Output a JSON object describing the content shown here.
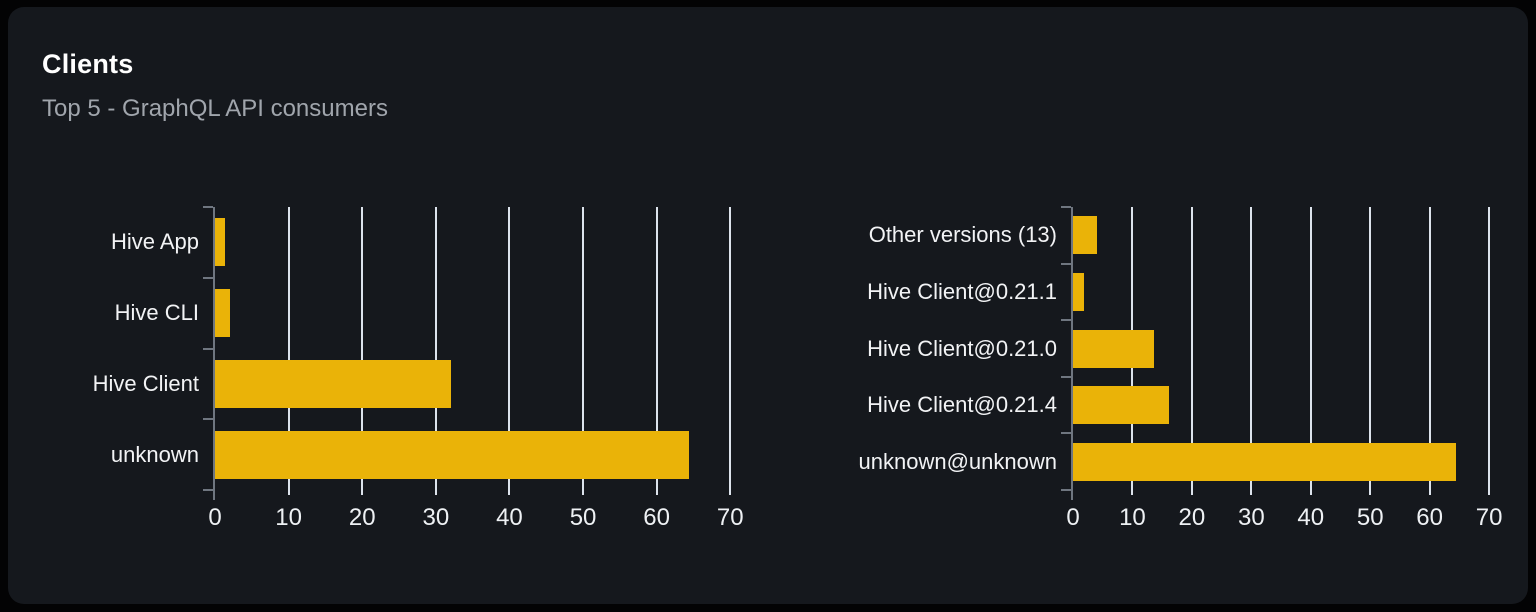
{
  "header": {
    "title": "Clients",
    "subtitle": "Top 5 - GraphQL API consumers"
  },
  "colors": {
    "bar": "#eab308",
    "grid": "#dce3ec",
    "axis": "#6f7680",
    "title": "#ffffff",
    "subtitle": "#a0a5ac",
    "category_label": "#f2f3f5",
    "tick_label": "#eef1f4",
    "card_bg": "#15181d",
    "page_bg": "#030304"
  },
  "chart_data": [
    {
      "type": "bar",
      "orientation": "horizontal",
      "title": "",
      "xlabel": "",
      "ylabel": "",
      "categories": [
        "Hive App",
        "Hive CLI",
        "Hive Client",
        "unknown"
      ],
      "values": [
        1.4,
        2.1,
        32.1,
        64.4
      ],
      "x_ticks": [
        0,
        10,
        20,
        30,
        40,
        50,
        60,
        70
      ],
      "xlim": [
        0,
        72
      ],
      "unit": "percent",
      "grid": true,
      "legend": false
    },
    {
      "type": "bar",
      "orientation": "horizontal",
      "title": "",
      "xlabel": "",
      "ylabel": "",
      "categories": [
        "Other versions (13)",
        "Hive Client@0.21.1",
        "Hive Client@0.21.0",
        "Hive Client@0.21.4",
        "unknown@unknown"
      ],
      "values": [
        4.0,
        1.9,
        13.6,
        16.1,
        64.4
      ],
      "x_ticks": [
        0,
        10,
        20,
        30,
        40,
        50,
        60,
        70
      ],
      "xlim": [
        0,
        72
      ],
      "unit": "percent",
      "grid": true,
      "legend": false
    }
  ]
}
